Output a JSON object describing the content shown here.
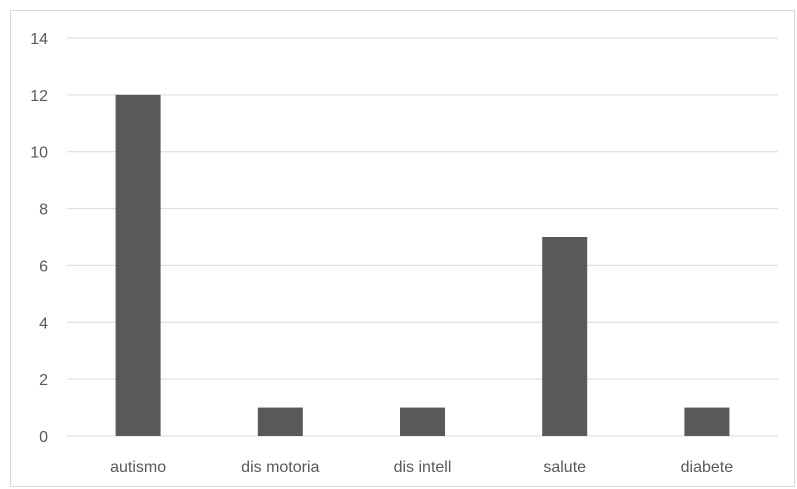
{
  "chart_data": {
    "type": "bar",
    "categories": [
      "autismo",
      "dis motoria",
      "dis intell",
      "salute",
      "diabete"
    ],
    "values": [
      12,
      1,
      1,
      7,
      1
    ],
    "title": "",
    "xlabel": "",
    "ylabel": "",
    "ylim": [
      0,
      14
    ],
    "yticks": [
      0,
      2,
      4,
      6,
      8,
      10,
      12,
      14
    ],
    "grid": true,
    "legend": "none",
    "bar_color": "#595959",
    "grid_color": "#d9d9d9"
  }
}
